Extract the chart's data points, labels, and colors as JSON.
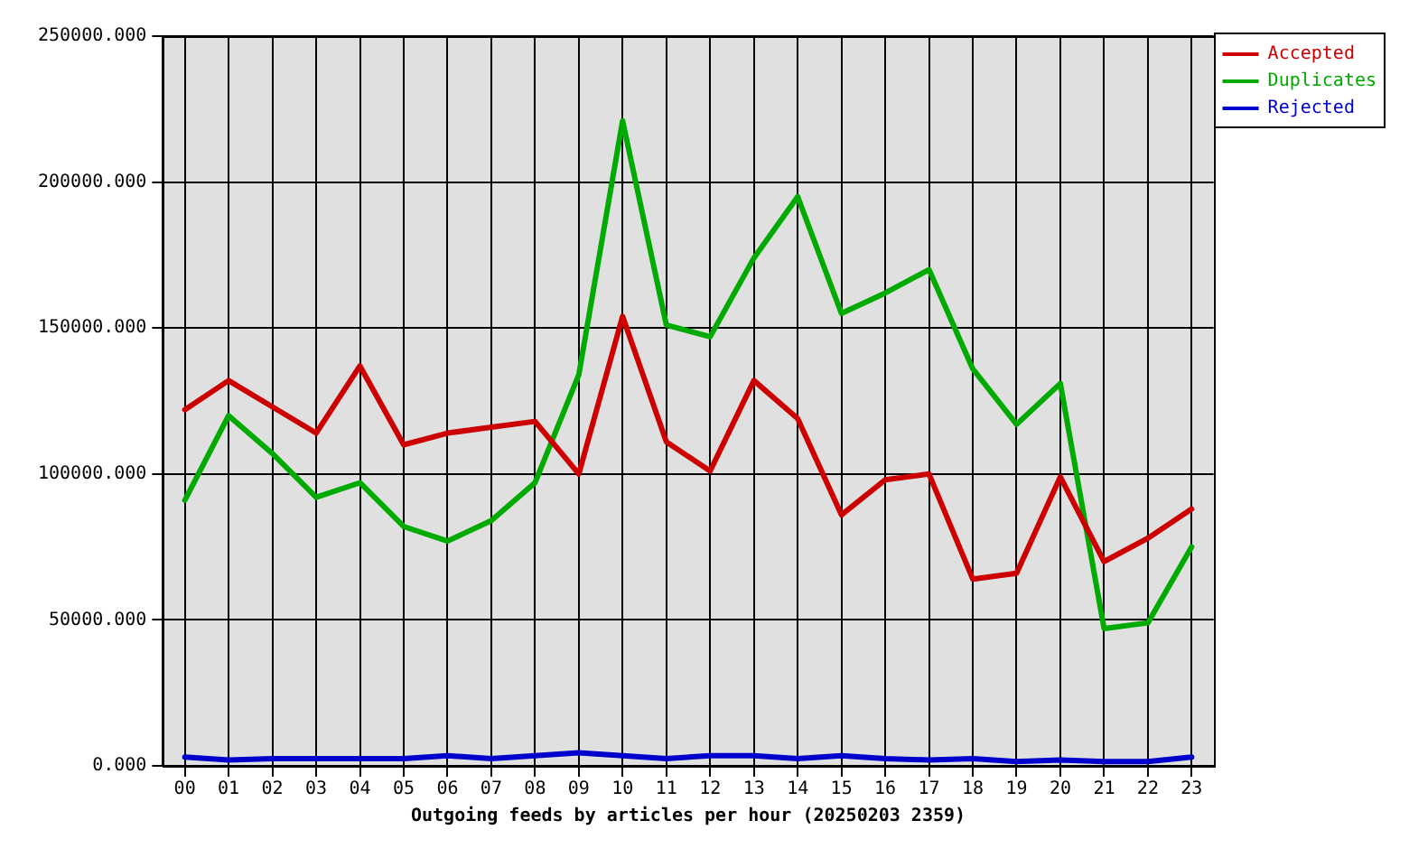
{
  "chart_data": {
    "type": "line",
    "xlabel": "Outgoing feeds by articles per hour (20250203 2359)",
    "categories": [
      "00",
      "01",
      "02",
      "03",
      "04",
      "05",
      "06",
      "07",
      "08",
      "09",
      "10",
      "11",
      "12",
      "13",
      "14",
      "15",
      "16",
      "17",
      "18",
      "19",
      "20",
      "21",
      "22",
      "23"
    ],
    "series": [
      {
        "name": "Accepted",
        "color": "#cc0000",
        "values": [
          122000,
          132000,
          123000,
          114000,
          137000,
          110000,
          114000,
          116000,
          118000,
          100000,
          154000,
          111000,
          101000,
          132000,
          119000,
          86000,
          98000,
          100000,
          64000,
          66000,
          99000,
          70000,
          78000,
          88000
        ]
      },
      {
        "name": "Duplicates",
        "color": "#00aa00",
        "values": [
          91000,
          120000,
          107000,
          92000,
          97000,
          82000,
          77000,
          84000,
          97000,
          134000,
          221000,
          151000,
          147000,
          174000,
          195000,
          155000,
          162000,
          170000,
          136000,
          117000,
          131000,
          47000,
          49000,
          75000
        ]
      },
      {
        "name": "Rejected",
        "color": "#0000cc",
        "values": [
          3000,
          2000,
          2500,
          2500,
          2500,
          2500,
          3500,
          2500,
          3500,
          4500,
          3500,
          2500,
          3500,
          3500,
          2500,
          3500,
          2500,
          2000,
          2500,
          1500,
          2000,
          1500,
          1500,
          3000
        ]
      }
    ],
    "ylim": [
      0,
      250000
    ],
    "yticks": [
      {
        "value": 0,
        "label": "0.000"
      },
      {
        "value": 50000,
        "label": "50000.000"
      },
      {
        "value": 100000,
        "label": "100000.000"
      },
      {
        "value": 150000,
        "label": "150000.000"
      },
      {
        "value": 200000,
        "label": "200000.000"
      },
      {
        "value": 250000,
        "label": "250000.000"
      }
    ],
    "grid": true,
    "legend": "top right",
    "marker": "none",
    "line_style": "solid"
  }
}
